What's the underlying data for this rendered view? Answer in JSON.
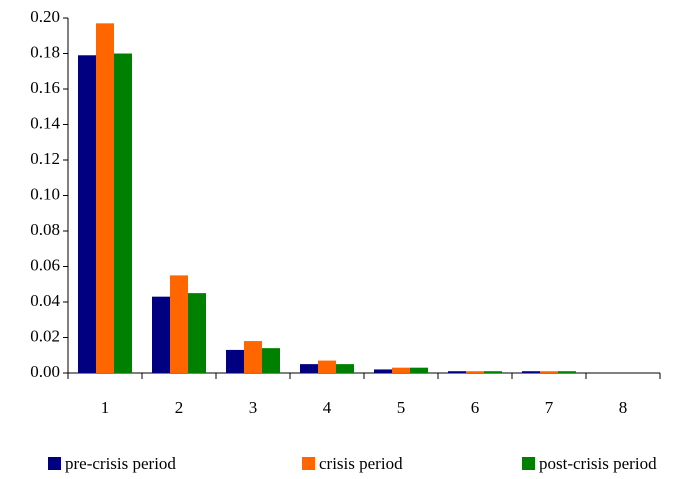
{
  "chart_data": {
    "type": "bar",
    "categories": [
      "1",
      "2",
      "3",
      "4",
      "5",
      "6",
      "7",
      "8"
    ],
    "series": [
      {
        "name": "pre-crisis period",
        "color": "#000080",
        "values": [
          0.179,
          0.043,
          0.013,
          0.005,
          0.002,
          0.001,
          0.001,
          0
        ]
      },
      {
        "name": "crisis period",
        "color": "#ff6600",
        "values": [
          0.197,
          0.055,
          0.018,
          0.007,
          0.003,
          0.001,
          0.001,
          0
        ]
      },
      {
        "name": "post-crisis period",
        "color": "#008000",
        "values": [
          0.18,
          0.045,
          0.014,
          0.005,
          0.003,
          0.001,
          0.001,
          0
        ]
      }
    ],
    "ylim": [
      0,
      0.2
    ],
    "yticks": [
      {
        "value": 0,
        "label": "0.00"
      },
      {
        "value": 0.02,
        "label": "0.02"
      },
      {
        "value": 0.04,
        "label": "0.04"
      },
      {
        "value": 0.06,
        "label": "0.06"
      },
      {
        "value": 0.08,
        "label": "0.08"
      },
      {
        "value": 0.1,
        "label": "0.10"
      },
      {
        "value": 0.12,
        "label": "0.12"
      },
      {
        "value": 0.14,
        "label": "0.14"
      },
      {
        "value": 0.16,
        "label": "0.16"
      },
      {
        "value": 0.18,
        "label": "0.18"
      },
      {
        "value": 0.2,
        "label": "0.20"
      }
    ],
    "grid": false,
    "legend": "bottom"
  }
}
